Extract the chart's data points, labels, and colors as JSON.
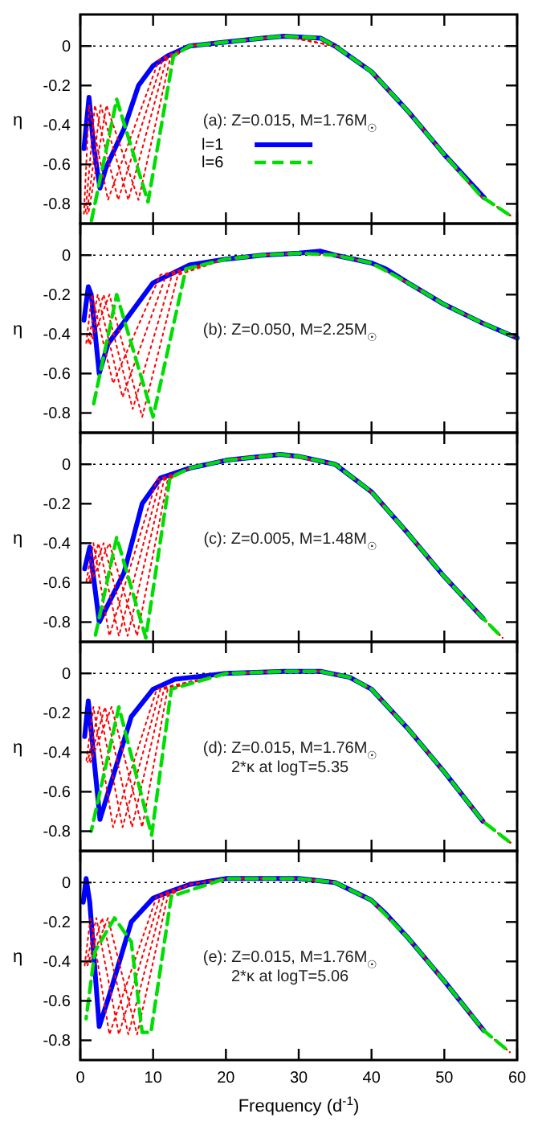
{
  "chart_data": [
    {
      "type": "line",
      "ylabel": "η",
      "xlim": [
        0,
        60
      ],
      "ylim": [
        -0.9,
        0.16
      ],
      "xticks": [
        0,
        10,
        20,
        30,
        40,
        50,
        60
      ],
      "yticks": [
        -0.8,
        -0.6,
        -0.4,
        -0.2,
        0
      ],
      "tick_labels": "y",
      "grid": false,
      "legend": "center",
      "annotations": [
        "(a): Z=0.015, M=1.76M$_{☉}$"
      ],
      "ref_lines": [
        {
          "axis": "y",
          "value": 0,
          "color": "#000000",
          "line_style": "dotted"
        }
      ],
      "series": [
        {
          "name": "l=1",
          "color": "#0000ff",
          "line_style": "solid",
          "x": [
            0.5,
            1.2,
            1.8,
            2.7,
            3.5,
            6,
            8,
            10,
            12,
            15,
            20,
            25,
            28,
            33,
            35,
            40,
            45,
            50,
            55.5
          ],
          "values": [
            -0.52,
            -0.26,
            -0.5,
            -0.72,
            -0.62,
            -0.42,
            -0.2,
            -0.1,
            -0.05,
            0,
            0.02,
            0.04,
            0.05,
            0.04,
            0,
            -0.13,
            -0.33,
            -0.55,
            -0.77
          ]
        },
        {
          "color": "#ff0000",
          "line_style": "dotted",
          "x": [
            0.5,
            1.2,
            3.8,
            10.8,
            15,
            20,
            28,
            35,
            40,
            45,
            50,
            55,
            59.5
          ],
          "values": [
            -0.85,
            -0.3,
            -0.78,
            -0.07,
            0,
            0.02,
            0.05,
            0,
            -0.13,
            -0.33,
            -0.55,
            -0.76,
            -0.87
          ]
        },
        {
          "color": "#ff0000",
          "line_style": "dotted",
          "x": [
            0.7,
            2.0,
            5.2,
            11.3,
            15,
            20,
            28,
            35,
            40,
            45,
            50,
            55,
            59.5
          ],
          "values": [
            -0.85,
            -0.3,
            -0.78,
            -0.07,
            0,
            0.02,
            0.05,
            0,
            -0.13,
            -0.33,
            -0.55,
            -0.76,
            -0.87
          ]
        },
        {
          "color": "#ff0000",
          "line_style": "dotted",
          "x": [
            0.9,
            2.8,
            6.6,
            11.8,
            15,
            20,
            28,
            35,
            40,
            45,
            50,
            55,
            59.5
          ],
          "values": [
            -0.85,
            -0.3,
            -0.78,
            -0.07,
            0,
            0.02,
            0.05,
            0,
            -0.13,
            -0.33,
            -0.55,
            -0.76,
            -0.87
          ]
        },
        {
          "color": "#ff0000",
          "line_style": "dotted",
          "x": [
            1.1,
            3.6,
            8.0,
            12.3,
            15,
            20,
            28,
            35,
            40,
            45,
            50,
            55,
            59.5
          ],
          "values": [
            -0.85,
            -0.3,
            -0.78,
            -0.07,
            0,
            0.02,
            0.05,
            0,
            -0.13,
            -0.33,
            -0.55,
            -0.76,
            -0.87
          ]
        },
        {
          "name": "l=6",
          "color": "#00dd00",
          "line_style": "dashed",
          "x": [
            1.5,
            5,
            9.3,
            12.8,
            15,
            20,
            25,
            28,
            33,
            35,
            40,
            45,
            50,
            55,
            59.5
          ],
          "values": [
            -0.89,
            -0.27,
            -0.79,
            -0.05,
            0,
            0.02,
            0.04,
            0.05,
            0.04,
            0,
            -0.13,
            -0.33,
            -0.55,
            -0.76,
            -0.87
          ]
        }
      ]
    },
    {
      "type": "line",
      "ylabel": "η",
      "xlim": [
        0,
        60
      ],
      "ylim": [
        -0.9,
        0.16
      ],
      "xticks": [
        0,
        10,
        20,
        30,
        40,
        50,
        60
      ],
      "yticks": [
        -0.8,
        -0.6,
        -0.4,
        -0.2,
        0
      ],
      "tick_labels": "y",
      "grid": false,
      "annotations": [
        "(b): Z=0.050, M=2.25M$_{☉}$"
      ],
      "ref_lines": [
        {
          "axis": "y",
          "value": 0,
          "color": "#000000",
          "line_style": "dotted"
        }
      ],
      "series": [
        {
          "color": "#0000ff",
          "line_style": "solid",
          "x": [
            0.5,
            1.1,
            1.5,
            2.6,
            3.8,
            10,
            15,
            20,
            25,
            30,
            33,
            35,
            40,
            42,
            45,
            50,
            55,
            60
          ],
          "values": [
            -0.33,
            -0.16,
            -0.2,
            -0.6,
            -0.45,
            -0.14,
            -0.05,
            -0.02,
            0,
            0.01,
            0.02,
            0,
            -0.04,
            -0.07,
            -0.14,
            -0.25,
            -0.34,
            -0.42
          ]
        },
        {
          "color": "#ff0000",
          "line_style": "dotted",
          "x": [
            0.8,
            1.6,
            4.5,
            11,
            20,
            25,
            30,
            35,
            40,
            45,
            50,
            55,
            60
          ],
          "values": [
            -0.45,
            -0.2,
            -0.65,
            -0.1,
            -0.02,
            0,
            0.01,
            0,
            -0.04,
            -0.14,
            -0.25,
            -0.34,
            -0.42
          ]
        },
        {
          "color": "#ff0000",
          "line_style": "dotted",
          "x": [
            1.0,
            2.4,
            5.8,
            11.8,
            20,
            25,
            30,
            35,
            40,
            45,
            50,
            55,
            60
          ],
          "values": [
            -0.45,
            -0.2,
            -0.72,
            -0.1,
            -0.02,
            0,
            0.01,
            0,
            -0.04,
            -0.14,
            -0.25,
            -0.34,
            -0.42
          ]
        },
        {
          "color": "#ff0000",
          "line_style": "dotted",
          "x": [
            1.2,
            3.2,
            7.2,
            12.6,
            20,
            25,
            30,
            35,
            40,
            45,
            50,
            55,
            60
          ],
          "values": [
            -0.45,
            -0.2,
            -0.78,
            -0.1,
            -0.02,
            0,
            0.01,
            0,
            -0.04,
            -0.14,
            -0.25,
            -0.34,
            -0.42
          ]
        },
        {
          "color": "#ff0000",
          "line_style": "dotted",
          "x": [
            1.4,
            4.0,
            8.5,
            13.4,
            20,
            25,
            30,
            35,
            40,
            45,
            50,
            55,
            60
          ],
          "values": [
            -0.45,
            -0.2,
            -0.82,
            -0.1,
            -0.02,
            0,
            0.01,
            0,
            -0.04,
            -0.14,
            -0.25,
            -0.34,
            -0.42
          ]
        },
        {
          "color": "#00dd00",
          "line_style": "dashed",
          "x": [
            1.8,
            5,
            10,
            14.5,
            20,
            25,
            30,
            35,
            40,
            45,
            50,
            55,
            60
          ],
          "values": [
            -0.76,
            -0.2,
            -0.82,
            -0.07,
            -0.02,
            0,
            0.01,
            0,
            -0.04,
            -0.14,
            -0.25,
            -0.34,
            -0.42
          ]
        }
      ]
    },
    {
      "type": "line",
      "ylabel": "η",
      "xlim": [
        0,
        60
      ],
      "ylim": [
        -0.9,
        0.16
      ],
      "xticks": [
        0,
        10,
        20,
        30,
        40,
        50,
        60
      ],
      "yticks": [
        -0.8,
        -0.6,
        -0.4,
        -0.2,
        0
      ],
      "tick_labels": "y",
      "grid": false,
      "annotations": [
        "(c): Z=0.005, M=1.48M$_{☉}$"
      ],
      "ref_lines": [
        {
          "axis": "y",
          "value": 0,
          "color": "#000000",
          "line_style": "dotted"
        }
      ],
      "series": [
        {
          "color": "#0000ff",
          "line_style": "solid",
          "x": [
            0.6,
            1.3,
            2.6,
            6,
            8.5,
            11,
            15,
            20,
            27.5,
            30,
            35,
            40,
            45,
            50,
            55.3
          ],
          "values": [
            -0.53,
            -0.42,
            -0.8,
            -0.55,
            -0.2,
            -0.07,
            -0.02,
            0.02,
            0.05,
            0.04,
            0,
            -0.14,
            -0.35,
            -0.57,
            -0.78
          ]
        },
        {
          "color": "#ff0000",
          "line_style": "dotted",
          "x": [
            0.8,
            1.8,
            4,
            10.5,
            15,
            20,
            27.5,
            35,
            40,
            45,
            50,
            55.3,
            58
          ],
          "values": [
            -0.6,
            -0.4,
            -0.87,
            -0.08,
            -0.02,
            0.02,
            0.05,
            0,
            -0.14,
            -0.35,
            -0.57,
            -0.78,
            -0.88
          ]
        },
        {
          "color": "#ff0000",
          "line_style": "dotted",
          "x": [
            1.0,
            2.5,
            5.3,
            11,
            15,
            20,
            27.5,
            35,
            40,
            45,
            50,
            55.3,
            58
          ],
          "values": [
            -0.6,
            -0.4,
            -0.87,
            -0.08,
            -0.02,
            0.02,
            0.05,
            0,
            -0.14,
            -0.35,
            -0.57,
            -0.78,
            -0.88
          ]
        },
        {
          "color": "#ff0000",
          "line_style": "dotted",
          "x": [
            1.2,
            3.2,
            6.5,
            11.5,
            15,
            20,
            27.5,
            35,
            40,
            45,
            50,
            55.3,
            58
          ],
          "values": [
            -0.6,
            -0.4,
            -0.87,
            -0.08,
            -0.02,
            0.02,
            0.05,
            0,
            -0.14,
            -0.35,
            -0.57,
            -0.78,
            -0.88
          ]
        },
        {
          "color": "#ff0000",
          "line_style": "dotted",
          "x": [
            1.4,
            4.0,
            7.8,
            12,
            15,
            20,
            27.5,
            35,
            40,
            45,
            50,
            55.3,
            58
          ],
          "values": [
            -0.6,
            -0.4,
            -0.87,
            -0.08,
            -0.02,
            0.02,
            0.05,
            0,
            -0.14,
            -0.35,
            -0.57,
            -0.78,
            -0.88
          ]
        },
        {
          "color": "#00dd00",
          "line_style": "dashed",
          "x": [
            2,
            5,
            9,
            12.3,
            15,
            20,
            27.5,
            30,
            35,
            40,
            45,
            50,
            55.3,
            58
          ],
          "values": [
            -0.88,
            -0.37,
            -0.88,
            -0.07,
            -0.02,
            0.02,
            0.05,
            0.04,
            0,
            -0.14,
            -0.35,
            -0.57,
            -0.78,
            -0.88
          ]
        }
      ]
    },
    {
      "type": "line",
      "ylabel": "η",
      "xlim": [
        0,
        60
      ],
      "ylim": [
        -0.9,
        0.16
      ],
      "xticks": [
        0,
        10,
        20,
        30,
        40,
        50,
        60
      ],
      "yticks": [
        -0.8,
        -0.6,
        -0.4,
        -0.2,
        0
      ],
      "tick_labels": "y",
      "grid": false,
      "annotations": [
        "(d): Z=0.015, M=1.76M$_{☉}$",
        "2*κ at logT=5.35"
      ],
      "ref_lines": [
        {
          "axis": "y",
          "value": 0,
          "color": "#000000",
          "line_style": "dotted"
        }
      ],
      "series": [
        {
          "color": "#0000ff",
          "line_style": "solid",
          "x": [
            0.6,
            1.1,
            2.7,
            7,
            10,
            13,
            20,
            28,
            33,
            37,
            40,
            45,
            50,
            55.3
          ],
          "values": [
            -0.32,
            -0.14,
            -0.74,
            -0.22,
            -0.08,
            -0.03,
            0,
            0.01,
            0.01,
            -0.02,
            -0.08,
            -0.28,
            -0.5,
            -0.75
          ]
        },
        {
          "color": "#ff0000",
          "line_style": "dotted",
          "x": [
            0.8,
            1.8,
            4.5,
            10.5,
            20,
            28,
            33,
            37,
            40,
            45,
            50,
            55.3,
            59.5
          ],
          "values": [
            -0.45,
            -0.17,
            -0.78,
            -0.08,
            0,
            0.01,
            0.01,
            -0.02,
            -0.08,
            -0.28,
            -0.5,
            -0.75,
            -0.87
          ]
        },
        {
          "color": "#ff0000",
          "line_style": "dotted",
          "x": [
            1.0,
            2.6,
            5.8,
            11,
            20,
            28,
            33,
            37,
            40,
            45,
            50,
            55.3,
            59.5
          ],
          "values": [
            -0.45,
            -0.17,
            -0.78,
            -0.08,
            0,
            0.01,
            0.01,
            -0.02,
            -0.08,
            -0.28,
            -0.5,
            -0.75,
            -0.87
          ]
        },
        {
          "color": "#ff0000",
          "line_style": "dotted",
          "x": [
            1.2,
            3.4,
            7.1,
            11.5,
            20,
            28,
            33,
            37,
            40,
            45,
            50,
            55.3,
            59.5
          ],
          "values": [
            -0.45,
            -0.17,
            -0.78,
            -0.08,
            0,
            0.01,
            0.01,
            -0.02,
            -0.08,
            -0.28,
            -0.5,
            -0.75,
            -0.87
          ]
        },
        {
          "color": "#ff0000",
          "line_style": "dotted",
          "x": [
            1.4,
            4.3,
            8.5,
            12,
            20,
            28,
            33,
            37,
            40,
            45,
            50,
            55.3,
            59.5
          ],
          "values": [
            -0.45,
            -0.17,
            -0.78,
            -0.08,
            0,
            0.01,
            0.01,
            -0.02,
            -0.08,
            -0.28,
            -0.5,
            -0.75,
            -0.87
          ]
        },
        {
          "color": "#00dd00",
          "line_style": "dashed",
          "x": [
            1.5,
            5.3,
            9.8,
            12.5,
            20,
            28,
            33,
            37,
            40,
            45,
            50,
            55.3,
            59.5
          ],
          "values": [
            -0.8,
            -0.17,
            -0.82,
            -0.08,
            0,
            0.01,
            0.01,
            -0.02,
            -0.08,
            -0.28,
            -0.5,
            -0.75,
            -0.87
          ]
        }
      ]
    },
    {
      "type": "line",
      "xlabel": "Frequency (d$^{-1}$)",
      "ylabel": "η",
      "xlim": [
        0,
        60
      ],
      "ylim": [
        -0.9,
        0.16
      ],
      "xticks": [
        0,
        10,
        20,
        30,
        40,
        50,
        60
      ],
      "yticks": [
        -0.8,
        -0.6,
        -0.4,
        -0.2,
        0
      ],
      "grid": false,
      "annotations": [
        "(e): Z=0.015, M=1.76M$_{☉}$",
        "2*κ at logT=5.06"
      ],
      "ref_lines": [
        {
          "axis": "y",
          "value": 0,
          "color": "#000000",
          "line_style": "dotted"
        }
      ],
      "series": [
        {
          "color": "#0000ff",
          "line_style": "solid",
          "x": [
            0.4,
            0.8,
            1.3,
            2.6,
            4,
            7,
            10,
            12,
            15,
            20,
            30,
            35,
            40,
            42,
            45,
            50,
            55.4
          ],
          "values": [
            -0.1,
            0.02,
            -0.1,
            -0.73,
            -0.57,
            -0.2,
            -0.08,
            -0.05,
            -0.01,
            0.02,
            0.02,
            0,
            -0.09,
            -0.16,
            -0.28,
            -0.5,
            -0.75
          ]
        },
        {
          "color": "#ff0000",
          "line_style": "dotted",
          "x": [
            0.6,
            1.4,
            4,
            10.5,
            15,
            20,
            30,
            35,
            40,
            45,
            50,
            55.4,
            59
          ],
          "values": [
            -0.42,
            -0.18,
            -0.77,
            -0.07,
            -0.01,
            0.02,
            0.02,
            0,
            -0.09,
            -0.28,
            -0.5,
            -0.75,
            -0.86
          ]
        },
        {
          "color": "#ff0000",
          "line_style": "dotted",
          "x": [
            0.8,
            2.2,
            5.3,
            11,
            15,
            20,
            30,
            35,
            40,
            45,
            50,
            55.4,
            59
          ],
          "values": [
            -0.42,
            -0.18,
            -0.77,
            -0.07,
            -0.01,
            0.02,
            0.02,
            0,
            -0.09,
            -0.28,
            -0.5,
            -0.75,
            -0.86
          ]
        },
        {
          "color": "#ff0000",
          "line_style": "dotted",
          "x": [
            1.0,
            3.0,
            6.6,
            11.5,
            15,
            20,
            30,
            35,
            40,
            45,
            50,
            55.4,
            59
          ],
          "values": [
            -0.42,
            -0.18,
            -0.77,
            -0.07,
            -0.01,
            0.02,
            0.02,
            0,
            -0.09,
            -0.28,
            -0.5,
            -0.75,
            -0.86
          ]
        },
        {
          "color": "#ff0000",
          "line_style": "dotted",
          "x": [
            1.2,
            3.8,
            7.8,
            12,
            15,
            20,
            30,
            35,
            40,
            45,
            50,
            55.4,
            59
          ],
          "values": [
            -0.42,
            -0.18,
            -0.77,
            -0.07,
            -0.01,
            0.02,
            0.02,
            0,
            -0.09,
            -0.28,
            -0.5,
            -0.75,
            -0.86
          ]
        },
        {
          "color": "#00dd00",
          "line_style": "dashed",
          "x": [
            0.8,
            2,
            4.7,
            7,
            8.5,
            9.7,
            12.5,
            20,
            30,
            35,
            40,
            45,
            50,
            55.4,
            59
          ],
          "values": [
            -0.69,
            -0.35,
            -0.18,
            -0.3,
            -0.76,
            -0.76,
            -0.07,
            0.02,
            0.02,
            0,
            -0.09,
            -0.28,
            -0.5,
            -0.75,
            -0.86
          ]
        }
      ]
    }
  ]
}
